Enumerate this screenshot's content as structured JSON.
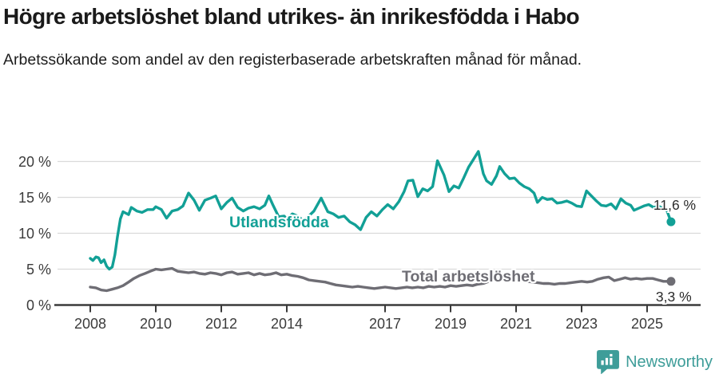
{
  "header": {
    "title": "Högre arbetslöshet bland utrikes- än inrikesfödda i Habo",
    "subtitle": "Arbetssökande som andel av den registerbaserade arbetskraften månad för månad."
  },
  "chart_data": {
    "type": "line",
    "y_unit": "%",
    "grid": true,
    "xlim": [
      2007.9,
      2026.2
    ],
    "ylim": [
      0,
      22
    ],
    "x_ticks": [
      2008,
      2010,
      2012,
      2014,
      2017,
      2019,
      2021,
      2023,
      2025
    ],
    "x_tick_labels": [
      "2008",
      "2010",
      "2012",
      "2014",
      "2017",
      "2019",
      "2021",
      "2023",
      "2025"
    ],
    "y_ticks": [
      0,
      5,
      10,
      15,
      20
    ],
    "y_tick_labels": [
      "0 %",
      "5 %",
      "10 %",
      "15 %",
      "20 %"
    ],
    "series": [
      {
        "name": "Total arbetslöshet",
        "color": "#6e6d74",
        "end_value": 3.3,
        "end_label": "3,3 %",
        "points": [
          [
            2008.0,
            2.5
          ],
          [
            2008.17,
            2.4
          ],
          [
            2008.33,
            2.1
          ],
          [
            2008.5,
            2.0
          ],
          [
            2008.67,
            2.2
          ],
          [
            2008.83,
            2.4
          ],
          [
            2009.0,
            2.7
          ],
          [
            2009.17,
            3.2
          ],
          [
            2009.33,
            3.7
          ],
          [
            2009.5,
            4.1
          ],
          [
            2009.67,
            4.4
          ],
          [
            2009.83,
            4.7
          ],
          [
            2010.0,
            5.0
          ],
          [
            2010.17,
            4.9
          ],
          [
            2010.33,
            5.0
          ],
          [
            2010.5,
            5.1
          ],
          [
            2010.67,
            4.7
          ],
          [
            2010.83,
            4.6
          ],
          [
            2011.0,
            4.5
          ],
          [
            2011.17,
            4.6
          ],
          [
            2011.33,
            4.4
          ],
          [
            2011.5,
            4.3
          ],
          [
            2011.67,
            4.5
          ],
          [
            2011.83,
            4.4
          ],
          [
            2012.0,
            4.2
          ],
          [
            2012.17,
            4.5
          ],
          [
            2012.33,
            4.6
          ],
          [
            2012.5,
            4.3
          ],
          [
            2012.67,
            4.4
          ],
          [
            2012.83,
            4.5
          ],
          [
            2013.0,
            4.2
          ],
          [
            2013.17,
            4.4
          ],
          [
            2013.33,
            4.2
          ],
          [
            2013.5,
            4.3
          ],
          [
            2013.67,
            4.5
          ],
          [
            2013.83,
            4.2
          ],
          [
            2014.0,
            4.3
          ],
          [
            2014.17,
            4.1
          ],
          [
            2014.33,
            4.0
          ],
          [
            2014.5,
            3.8
          ],
          [
            2014.67,
            3.5
          ],
          [
            2014.83,
            3.4
          ],
          [
            2015.0,
            3.3
          ],
          [
            2015.17,
            3.2
          ],
          [
            2015.33,
            3.0
          ],
          [
            2015.5,
            2.8
          ],
          [
            2015.67,
            2.7
          ],
          [
            2015.83,
            2.6
          ],
          [
            2016.0,
            2.5
          ],
          [
            2016.17,
            2.6
          ],
          [
            2016.33,
            2.5
          ],
          [
            2016.5,
            2.4
          ],
          [
            2016.67,
            2.3
          ],
          [
            2016.83,
            2.4
          ],
          [
            2017.0,
            2.5
          ],
          [
            2017.17,
            2.4
          ],
          [
            2017.33,
            2.3
          ],
          [
            2017.5,
            2.4
          ],
          [
            2017.67,
            2.5
          ],
          [
            2017.83,
            2.4
          ],
          [
            2018.0,
            2.5
          ],
          [
            2018.17,
            2.4
          ],
          [
            2018.33,
            2.6
          ],
          [
            2018.5,
            2.5
          ],
          [
            2018.67,
            2.6
          ],
          [
            2018.83,
            2.5
          ],
          [
            2019.0,
            2.7
          ],
          [
            2019.17,
            2.6
          ],
          [
            2019.33,
            2.7
          ],
          [
            2019.5,
            2.8
          ],
          [
            2019.67,
            2.7
          ],
          [
            2019.83,
            2.9
          ],
          [
            2020.0,
            3.0
          ],
          [
            2020.17,
            3.3
          ],
          [
            2020.33,
            3.6
          ],
          [
            2020.5,
            3.7
          ],
          [
            2020.67,
            3.6
          ],
          [
            2020.83,
            3.5
          ],
          [
            2021.0,
            3.5
          ],
          [
            2021.17,
            3.4
          ],
          [
            2021.33,
            3.3
          ],
          [
            2021.5,
            3.2
          ],
          [
            2021.67,
            3.1
          ],
          [
            2021.83,
            3.0
          ],
          [
            2022.0,
            3.0
          ],
          [
            2022.17,
            2.9
          ],
          [
            2022.33,
            3.0
          ],
          [
            2022.5,
            3.0
          ],
          [
            2022.67,
            3.1
          ],
          [
            2022.83,
            3.2
          ],
          [
            2023.0,
            3.3
          ],
          [
            2023.17,
            3.2
          ],
          [
            2023.33,
            3.3
          ],
          [
            2023.5,
            3.6
          ],
          [
            2023.67,
            3.8
          ],
          [
            2023.83,
            3.9
          ],
          [
            2024.0,
            3.4
          ],
          [
            2024.17,
            3.6
          ],
          [
            2024.33,
            3.8
          ],
          [
            2024.5,
            3.6
          ],
          [
            2024.67,
            3.7
          ],
          [
            2024.83,
            3.6
          ],
          [
            2025.0,
            3.7
          ],
          [
            2025.17,
            3.7
          ],
          [
            2025.33,
            3.5
          ],
          [
            2025.5,
            3.3
          ],
          [
            2025.73,
            3.3
          ]
        ]
      },
      {
        "name": "Utlandsfödda",
        "color": "#12a096",
        "end_value": 11.6,
        "end_label": "11,6 %",
        "points": [
          [
            2008.0,
            6.5
          ],
          [
            2008.08,
            6.2
          ],
          [
            2008.17,
            6.7
          ],
          [
            2008.25,
            6.6
          ],
          [
            2008.33,
            5.9
          ],
          [
            2008.42,
            6.3
          ],
          [
            2008.5,
            5.4
          ],
          [
            2008.58,
            5.0
          ],
          [
            2008.67,
            5.3
          ],
          [
            2008.75,
            7.0
          ],
          [
            2008.83,
            9.5
          ],
          [
            2008.92,
            12.0
          ],
          [
            2009.0,
            13.0
          ],
          [
            2009.17,
            12.6
          ],
          [
            2009.25,
            13.6
          ],
          [
            2009.42,
            13.1
          ],
          [
            2009.58,
            12.9
          ],
          [
            2009.75,
            13.3
          ],
          [
            2009.92,
            13.3
          ],
          [
            2010.0,
            13.7
          ],
          [
            2010.17,
            13.3
          ],
          [
            2010.33,
            12.1
          ],
          [
            2010.5,
            13.1
          ],
          [
            2010.67,
            13.3
          ],
          [
            2010.83,
            13.8
          ],
          [
            2011.0,
            15.6
          ],
          [
            2011.17,
            14.6
          ],
          [
            2011.33,
            13.2
          ],
          [
            2011.5,
            14.6
          ],
          [
            2011.67,
            14.9
          ],
          [
            2011.83,
            15.2
          ],
          [
            2012.0,
            13.4
          ],
          [
            2012.17,
            14.3
          ],
          [
            2012.33,
            14.9
          ],
          [
            2012.5,
            13.6
          ],
          [
            2012.67,
            13.1
          ],
          [
            2012.83,
            13.5
          ],
          [
            2013.0,
            13.7
          ],
          [
            2013.17,
            13.4
          ],
          [
            2013.33,
            13.9
          ],
          [
            2013.45,
            15.2
          ],
          [
            2013.58,
            13.9
          ],
          [
            2013.75,
            12.3
          ],
          [
            2013.92,
            12.4
          ],
          [
            2014.0,
            12.0
          ],
          [
            2014.17,
            12.7
          ],
          [
            2014.33,
            12.4
          ],
          [
            2014.5,
            11.8
          ],
          [
            2014.67,
            12.4
          ],
          [
            2014.83,
            13.1
          ],
          [
            2015.05,
            14.9
          ],
          [
            2015.25,
            13.0
          ],
          [
            2015.42,
            12.7
          ],
          [
            2015.58,
            12.2
          ],
          [
            2015.75,
            12.4
          ],
          [
            2015.92,
            11.6
          ],
          [
            2016.08,
            11.2
          ],
          [
            2016.25,
            10.5
          ],
          [
            2016.42,
            12.2
          ],
          [
            2016.58,
            13.0
          ],
          [
            2016.75,
            12.4
          ],
          [
            2016.92,
            13.3
          ],
          [
            2017.08,
            14.0
          ],
          [
            2017.25,
            13.4
          ],
          [
            2017.42,
            14.4
          ],
          [
            2017.58,
            15.8
          ],
          [
            2017.7,
            17.3
          ],
          [
            2017.85,
            17.4
          ],
          [
            2018.0,
            15.1
          ],
          [
            2018.15,
            16.2
          ],
          [
            2018.3,
            15.9
          ],
          [
            2018.45,
            16.5
          ],
          [
            2018.6,
            20.1
          ],
          [
            2018.8,
            18.1
          ],
          [
            2018.95,
            15.8
          ],
          [
            2019.1,
            16.6
          ],
          [
            2019.25,
            16.3
          ],
          [
            2019.4,
            17.7
          ],
          [
            2019.55,
            19.2
          ],
          [
            2019.7,
            20.3
          ],
          [
            2019.85,
            21.4
          ],
          [
            2020.0,
            18.3
          ],
          [
            2020.1,
            17.3
          ],
          [
            2020.25,
            16.8
          ],
          [
            2020.4,
            18.0
          ],
          [
            2020.5,
            19.3
          ],
          [
            2020.65,
            18.3
          ],
          [
            2020.8,
            17.6
          ],
          [
            2020.95,
            17.7
          ],
          [
            2021.1,
            17.0
          ],
          [
            2021.25,
            16.5
          ],
          [
            2021.4,
            16.2
          ],
          [
            2021.55,
            15.6
          ],
          [
            2021.65,
            14.3
          ],
          [
            2021.8,
            15.0
          ],
          [
            2021.95,
            14.7
          ],
          [
            2022.1,
            14.8
          ],
          [
            2022.25,
            14.2
          ],
          [
            2022.4,
            14.3
          ],
          [
            2022.55,
            14.5
          ],
          [
            2022.7,
            14.2
          ],
          [
            2022.85,
            13.8
          ],
          [
            2023.0,
            13.7
          ],
          [
            2023.15,
            15.9
          ],
          [
            2023.3,
            15.2
          ],
          [
            2023.45,
            14.5
          ],
          [
            2023.6,
            13.9
          ],
          [
            2023.75,
            13.8
          ],
          [
            2023.9,
            14.1
          ],
          [
            2024.05,
            13.4
          ],
          [
            2024.2,
            14.8
          ],
          [
            2024.35,
            14.2
          ],
          [
            2024.5,
            13.9
          ],
          [
            2024.6,
            13.2
          ],
          [
            2024.75,
            13.5
          ],
          [
            2024.9,
            13.8
          ],
          [
            2025.05,
            14.0
          ],
          [
            2025.2,
            13.6
          ],
          [
            2025.35,
            13.8
          ],
          [
            2025.5,
            13.4
          ],
          [
            2025.6,
            13.2
          ],
          [
            2025.73,
            11.6
          ]
        ]
      }
    ]
  },
  "footer": {
    "brand": "Newsworthy",
    "brand_color": "#3e9d99"
  }
}
